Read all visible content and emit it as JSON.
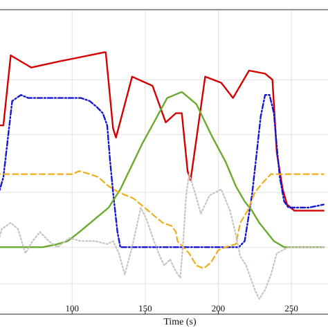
{
  "chart_data": {
    "type": "line",
    "xlabel": "Time (s)",
    "ylabel": "",
    "xlim": [
      45,
      275
    ],
    "ylim": [
      0,
      100
    ],
    "x_ticks": [
      100,
      150,
      200,
      250
    ],
    "y_grid": [
      10,
      22,
      40,
      59,
      77
    ],
    "grid": true,
    "series": [
      {
        "color": "#d40000",
        "style": "solid",
        "points": [
          [
            47,
            62
          ],
          [
            53,
            62
          ],
          [
            58,
            85
          ],
          [
            72,
            81
          ],
          [
            91,
            83
          ],
          [
            122,
            86
          ],
          [
            123,
            86
          ],
          [
            128,
            61
          ],
          [
            130,
            58
          ],
          [
            141,
            78
          ],
          [
            155,
            75
          ],
          [
            164,
            63
          ],
          [
            171,
            66
          ],
          [
            175,
            66
          ],
          [
            179,
            47
          ],
          [
            181,
            44
          ],
          [
            191,
            78
          ],
          [
            202,
            76
          ],
          [
            210,
            71
          ],
          [
            221,
            80
          ],
          [
            232,
            79
          ],
          [
            237,
            77
          ],
          [
            240,
            53
          ],
          [
            244,
            41
          ],
          [
            247,
            36
          ],
          [
            252,
            34
          ],
          [
            272,
            34
          ]
        ]
      },
      {
        "color": "#1616d0",
        "style": "dashdot",
        "points": [
          [
            47,
            40
          ],
          [
            50,
            40
          ],
          [
            53,
            45
          ],
          [
            59,
            70
          ],
          [
            62,
            71
          ],
          [
            65,
            72
          ],
          [
            70,
            71
          ],
          [
            80,
            71
          ],
          [
            92,
            71
          ],
          [
            106,
            71
          ],
          [
            112,
            70
          ],
          [
            117,
            68
          ],
          [
            121,
            66
          ],
          [
            124,
            62
          ],
          [
            126,
            50
          ],
          [
            128,
            40
          ],
          [
            131,
            27
          ],
          [
            133,
            22
          ],
          [
            140,
            22
          ],
          [
            160,
            22
          ],
          [
            180,
            22
          ],
          [
            200,
            22
          ],
          [
            214,
            22
          ],
          [
            218,
            24
          ],
          [
            220,
            30
          ],
          [
            223,
            39
          ],
          [
            226,
            52
          ],
          [
            229,
            65
          ],
          [
            232,
            72
          ],
          [
            235,
            72
          ],
          [
            238,
            66
          ],
          [
            240,
            55
          ],
          [
            242,
            45
          ],
          [
            245,
            37
          ],
          [
            248,
            35
          ],
          [
            252,
            35
          ],
          [
            256,
            35
          ],
          [
            262,
            35
          ],
          [
            272,
            36
          ]
        ]
      },
      {
        "color": "#6aaa2c",
        "style": "solid",
        "points": [
          [
            47,
            22
          ],
          [
            60,
            22
          ],
          [
            80,
            22
          ],
          [
            90,
            23
          ],
          [
            97,
            24
          ],
          [
            105,
            27
          ],
          [
            115,
            31
          ],
          [
            125,
            35
          ],
          [
            133,
            41
          ],
          [
            140,
            48
          ],
          [
            148,
            56
          ],
          [
            156,
            63
          ],
          [
            165,
            71
          ],
          [
            175,
            73
          ],
          [
            185,
            69
          ],
          [
            195,
            59
          ],
          [
            205,
            50
          ],
          [
            212,
            42
          ],
          [
            218,
            37
          ],
          [
            223,
            34
          ],
          [
            228,
            30
          ],
          [
            233,
            27
          ],
          [
            238,
            24
          ],
          [
            245,
            22
          ],
          [
            252,
            22
          ],
          [
            262,
            22
          ],
          [
            272,
            22
          ]
        ]
      },
      {
        "color": "#efad1d",
        "style": "dashed",
        "points": [
          [
            47,
            46
          ],
          [
            55,
            46
          ],
          [
            75,
            46
          ],
          [
            100,
            46
          ],
          [
            105,
            47
          ],
          [
            112,
            46
          ],
          [
            118,
            45
          ],
          [
            125,
            42
          ],
          [
            132,
            40
          ],
          [
            142,
            38
          ],
          [
            152,
            34
          ],
          [
            162,
            30
          ],
          [
            168,
            29
          ],
          [
            171,
            27
          ],
          [
            172,
            24
          ],
          [
            176,
            22
          ],
          [
            180,
            20
          ],
          [
            185,
            16
          ],
          [
            190,
            15
          ],
          [
            195,
            17
          ],
          [
            200,
            21
          ],
          [
            205,
            22
          ],
          [
            212,
            23
          ],
          [
            215,
            30
          ],
          [
            220,
            34
          ],
          [
            225,
            40
          ],
          [
            230,
            43
          ],
          [
            236,
            46
          ],
          [
            242,
            46
          ],
          [
            248,
            46
          ],
          [
            254,
            46
          ],
          [
            262,
            46
          ],
          [
            272,
            46
          ]
        ]
      },
      {
        "color": "#c8c4bc",
        "style": "dotted",
        "points": [
          [
            47,
            20
          ],
          [
            52,
            28
          ],
          [
            58,
            30
          ],
          [
            63,
            28
          ],
          [
            68,
            20
          ],
          [
            73,
            24
          ],
          [
            78,
            27
          ],
          [
            84,
            24
          ],
          [
            90,
            22
          ],
          [
            98,
            25
          ],
          [
            106,
            24
          ],
          [
            116,
            24
          ],
          [
            124,
            23
          ],
          [
            128,
            24
          ],
          [
            132,
            20
          ],
          [
            136,
            13
          ],
          [
            141,
            22
          ],
          [
            147,
            35
          ],
          [
            151,
            31
          ],
          [
            156,
            24
          ],
          [
            160,
            19
          ],
          [
            163,
            16
          ],
          [
            167,
            18
          ],
          [
            171,
            14
          ],
          [
            174,
            12
          ],
          [
            176,
            24
          ],
          [
            178,
            39
          ],
          [
            180,
            46
          ],
          [
            184,
            40
          ],
          [
            188,
            33
          ],
          [
            194,
            39
          ],
          [
            202,
            41
          ],
          [
            208,
            34
          ],
          [
            212,
            26
          ],
          [
            215,
            19
          ],
          [
            219,
            16
          ],
          [
            222,
            12
          ],
          [
            225,
            8
          ],
          [
            228,
            5
          ],
          [
            232,
            8
          ],
          [
            236,
            13
          ],
          [
            240,
            20
          ],
          [
            244,
            21
          ],
          [
            248,
            22
          ],
          [
            254,
            22
          ],
          [
            262,
            22
          ],
          [
            272,
            22
          ]
        ]
      }
    ]
  }
}
